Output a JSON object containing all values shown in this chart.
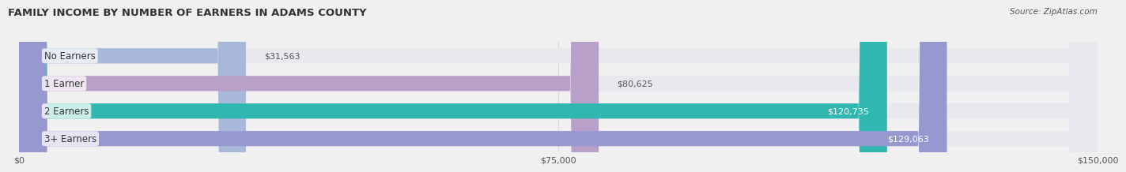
{
  "title": "FAMILY INCOME BY NUMBER OF EARNERS IN ADAMS COUNTY",
  "source": "Source: ZipAtlas.com",
  "categories": [
    "No Earners",
    "1 Earner",
    "2 Earners",
    "3+ Earners"
  ],
  "values": [
    31563,
    80625,
    120735,
    129063
  ],
  "bar_colors": [
    "#a8b8d8",
    "#b8a0c8",
    "#30b8b0",
    "#9898d0"
  ],
  "label_colors": [
    "#555555",
    "#555555",
    "#ffffff",
    "#ffffff"
  ],
  "x_ticks": [
    0,
    75000,
    150000
  ],
  "x_tick_labels": [
    "$0",
    "$75,000",
    "$150,000"
  ],
  "xlim": [
    0,
    150000
  ],
  "background_color": "#f0f0f0",
  "bar_bg_color": "#e8e8ee",
  "bar_height": 0.55,
  "label_inside_threshold": 100000
}
